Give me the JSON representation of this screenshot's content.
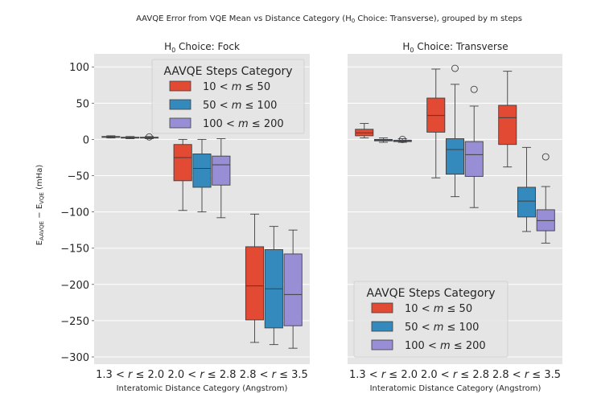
{
  "figure": {
    "suptitle": "AAVQE Error from VQE Mean vs Distance Category (H0 Choice: Transverse), grouped by m steps",
    "ylabel": "E_AAVQE − E_VQE (mHa)"
  },
  "chart_data": [
    {
      "type": "box",
      "title": "H0 Choice: Fock",
      "xlabel": "Interatomic Distance Category (Angstrom)",
      "ylabel": "E_AAVQE − E_VQE (mHa)",
      "ylim": [
        -310,
        118
      ],
      "yticks": [
        100,
        50,
        0,
        -50,
        -100,
        -150,
        -200,
        -250,
        -300
      ],
      "categories": [
        "1.3 < r ≤ 2.0",
        "2.0 < r ≤ 2.8",
        "2.8 < r ≤ 3.5"
      ],
      "legend": {
        "title": "AAVQE Steps Category",
        "placement": "top-right",
        "entries": [
          "10 < m ≤ 50",
          "50 < m ≤ 100",
          "100 < m ≤ 200"
        ]
      },
      "series": [
        {
          "name": "10 < m ≤ 50",
          "color": "#e24a33",
          "boxes": [
            {
              "whislo": 2,
              "q1": 3,
              "med": 3.5,
              "q3": 4,
              "whishi": 5,
              "fliers": []
            },
            {
              "whislo": -98,
              "q1": -57,
              "med": -25,
              "q3": -7,
              "whishi": 0,
              "fliers": []
            },
            {
              "whislo": -280,
              "q1": -249,
              "med": -202,
              "q3": -148,
              "whishi": -103,
              "fliers": []
            }
          ]
        },
        {
          "name": "50 < m ≤ 100",
          "color": "#348abd",
          "boxes": [
            {
              "whislo": 1,
              "q1": 2,
              "med": 2.5,
              "q3": 3,
              "whishi": 4,
              "fliers": []
            },
            {
              "whislo": -100,
              "q1": -66,
              "med": -40,
              "q3": -20,
              "whishi": 0,
              "fliers": []
            },
            {
              "whislo": -283,
              "q1": -260,
              "med": -206,
              "q3": -152,
              "whishi": -120,
              "fliers": []
            }
          ]
        },
        {
          "name": "100 < m ≤ 200",
          "color": "#988ed5",
          "boxes": [
            {
              "whislo": 1,
              "q1": 2,
              "med": 2.5,
              "q3": 3,
              "whishi": 4,
              "fliers": [
                3.5
              ]
            },
            {
              "whislo": -108,
              "q1": -63,
              "med": -35,
              "q3": -23,
              "whishi": 1,
              "fliers": []
            },
            {
              "whislo": -288,
              "q1": -257,
              "med": -214,
              "q3": -158,
              "whishi": -125,
              "fliers": []
            }
          ]
        }
      ]
    },
    {
      "type": "box",
      "title": "H0 Choice: Transverse",
      "xlabel": "Interatomic Distance Category (Angstrom)",
      "ylabel": "",
      "ylim": [
        -310,
        118
      ],
      "yticks": [],
      "categories": [
        "1.3 < r ≤ 2.0",
        "2.0 < r ≤ 2.8",
        "2.8 < r ≤ 3.5"
      ],
      "legend": {
        "title": "AAVQE Steps Category",
        "placement": "bottom-right",
        "entries": [
          "10 < m ≤ 50",
          "50 < m ≤ 100",
          "100 < m ≤ 200"
        ]
      },
      "series": [
        {
          "name": "10 < m ≤ 50",
          "color": "#e24a33",
          "boxes": [
            {
              "whislo": 2,
              "q1": 5,
              "med": 9,
              "q3": 14,
              "whishi": 22,
              "fliers": []
            },
            {
              "whislo": -53,
              "q1": 10,
              "med": 33,
              "q3": 57,
              "whishi": 97,
              "fliers": []
            },
            {
              "whislo": -38,
              "q1": -7,
              "med": 30,
              "q3": 47,
              "whishi": 94,
              "fliers": []
            }
          ]
        },
        {
          "name": "50 < m ≤ 100",
          "color": "#348abd",
          "boxes": [
            {
              "whislo": -4,
              "q1": -2,
              "med": -1,
              "q3": 0,
              "whishi": 2,
              "fliers": []
            },
            {
              "whislo": -79,
              "q1": -48,
              "med": -14,
              "q3": 1,
              "whishi": 76,
              "fliers": [
                98
              ]
            },
            {
              "whislo": -127,
              "q1": -107,
              "med": -85,
              "q3": -66,
              "whishi": -11,
              "fliers": []
            }
          ]
        },
        {
          "name": "100 < m ≤ 200",
          "color": "#988ed5",
          "boxes": [
            {
              "whislo": -4,
              "q1": -3,
              "med": -2,
              "q3": -1,
              "whishi": 1,
              "fliers": [
                0
              ]
            },
            {
              "whislo": -94,
              "q1": -51,
              "med": -21,
              "q3": -3,
              "whishi": 46,
              "fliers": [
                69
              ]
            },
            {
              "whislo": -143,
              "q1": -126,
              "med": -112,
              "q3": -97,
              "whishi": -65,
              "fliers": [
                -24
              ]
            }
          ]
        }
      ]
    }
  ]
}
